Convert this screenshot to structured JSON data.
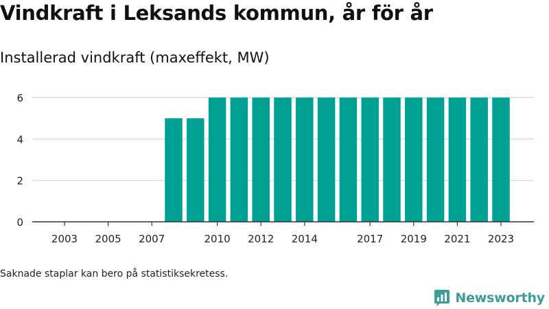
{
  "title": "Vindkraft i Leksands kommun, år för år",
  "subtitle": "Installerad vindkraft (maxeffekt, MW)",
  "note": "Saknade staplar kan bero på statistiksekretess.",
  "brand": {
    "name": "Newsworthy",
    "icon": "newsworthy-logo-icon",
    "color": "#3d9d96"
  },
  "chart_data": {
    "type": "bar",
    "categories": [
      "2003",
      "2004",
      "2005",
      "2006",
      "2007",
      "2008",
      "2009",
      "2010",
      "2011",
      "2012",
      "2013",
      "2014",
      "2015",
      "2016",
      "2017",
      "2018",
      "2019",
      "2020",
      "2021",
      "2022",
      "2023"
    ],
    "values": [
      null,
      null,
      null,
      null,
      null,
      5,
      5,
      6,
      6,
      6,
      6,
      6,
      6,
      6,
      6,
      6,
      6,
      6,
      6,
      6,
      6
    ],
    "x_tick_labels": [
      "2003",
      "2005",
      "2007",
      "2010",
      "2012",
      "2014",
      "2017",
      "2019",
      "2021",
      "2023"
    ],
    "y_ticks": [
      0,
      2,
      4,
      6
    ],
    "ylim": [
      0,
      6.4
    ],
    "bar_color": "#00a195",
    "grid": true
  }
}
